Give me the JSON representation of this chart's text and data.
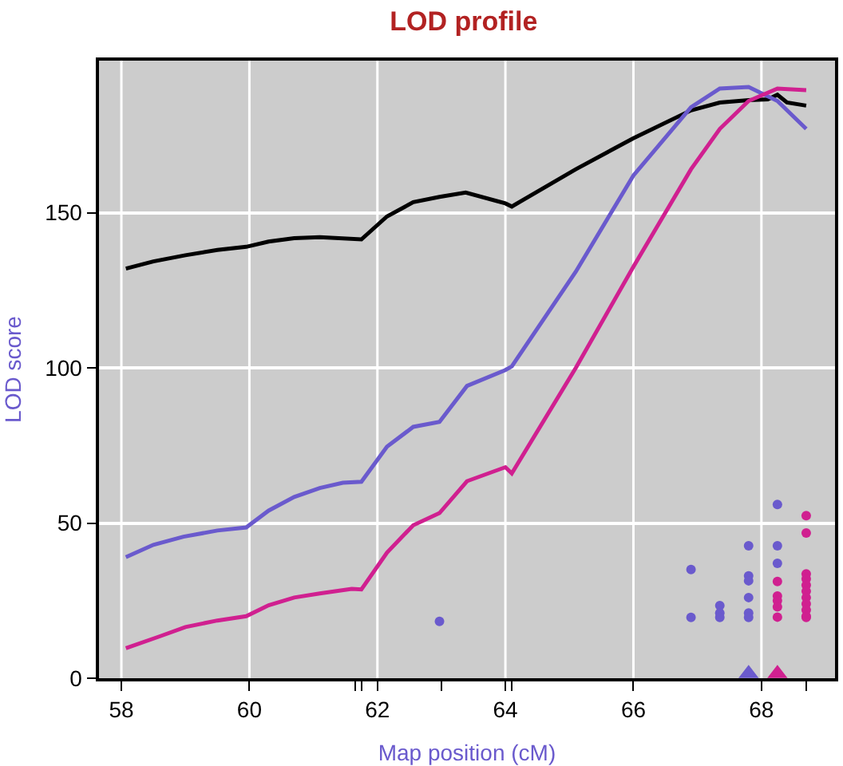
{
  "chart_data": {
    "type": "line",
    "title": "LOD profile",
    "xlabel": "Map position (cM)",
    "ylabel": "LOD score",
    "xlim": [
      57.65,
      69.15
    ],
    "ylim": [
      0,
      199
    ],
    "xticks": [
      58,
      60,
      62,
      64,
      66,
      68,
      {
        "value": 61.65,
        "label": null
      },
      {
        "value": 61.75,
        "label": null
      },
      {
        "value": 63.0,
        "label": null
      },
      {
        "value": 64.1,
        "label": null
      },
      {
        "value": 68.7,
        "label": null
      }
    ],
    "yticks": [
      0,
      50,
      100,
      150
    ],
    "grid": true,
    "line_style": "solid",
    "marker": "none",
    "series": [
      {
        "color": "#000000",
        "x": [
          58.07,
          58.5,
          59.0,
          59.5,
          59.95,
          60.3,
          60.7,
          61.1,
          61.75,
          62.15,
          62.56,
          62.97,
          63.38,
          64.0,
          64.1,
          65.1,
          66.0,
          66.9,
          67.35,
          67.8,
          68.1,
          68.25,
          68.4,
          68.7
        ],
        "values": [
          132,
          134.3,
          136.3,
          138,
          139,
          140.7,
          141.8,
          142.1,
          141.4,
          148.8,
          153.4,
          155.1,
          156.5,
          153,
          152,
          164,
          174,
          183,
          185.5,
          186.3,
          186.5,
          188,
          185.5,
          184.5
        ]
      },
      {
        "color": "#6a5acd",
        "x": [
          58.07,
          58.5,
          58.97,
          59.5,
          59.95,
          60.3,
          60.7,
          61.1,
          61.46,
          61.75,
          62.15,
          62.56,
          62.97,
          63.4,
          64.0,
          64.1,
          65.1,
          66.0,
          66.9,
          67.35,
          67.8,
          68.25,
          68.7
        ],
        "values": [
          39,
          43,
          45.6,
          47.6,
          48.6,
          54,
          58.4,
          61.3,
          63,
          63.3,
          74.6,
          81,
          82.6,
          94.2,
          99.3,
          100.5,
          131,
          162,
          184,
          190,
          190.5,
          186,
          177
        ]
      },
      {
        "color": "#d02090",
        "x": [
          58.07,
          58.6,
          59.0,
          59.5,
          59.95,
          60.3,
          60.7,
          61.1,
          61.6,
          61.75,
          62.15,
          62.56,
          62.97,
          63.4,
          64.0,
          64.1,
          65.1,
          66.0,
          66.9,
          67.35,
          67.8,
          68.25,
          68.7
        ],
        "values": [
          9.7,
          13.5,
          16.5,
          18.6,
          20,
          23.5,
          26,
          27.3,
          28.8,
          28.6,
          40.5,
          49.3,
          53.2,
          63.5,
          68,
          66,
          100,
          132.6,
          164,
          177,
          186,
          190,
          189.5
        ]
      },
      {
        "type": "scatter",
        "marker": "circle",
        "color": "#6a5acd",
        "x": [
          62.97,
          66.9,
          66.9,
          67.35,
          67.35,
          67.35,
          67.8,
          67.8,
          67.8,
          67.8,
          67.8,
          67.8,
          68.25,
          68.25,
          68.25
        ],
        "values": [
          18.3,
          35,
          19.6,
          23.4,
          21,
          19.6,
          42.7,
          33,
          31.4,
          26,
          21,
          19.6,
          56,
          42.7,
          37
        ]
      },
      {
        "type": "scatter",
        "marker": "circle",
        "color": "#d02090",
        "x": [
          68.25,
          68.25,
          68.25,
          68.25,
          68.25,
          68.7,
          68.7,
          68.7,
          68.7,
          68.7,
          68.7,
          68.7,
          68.7,
          68.7,
          68.7,
          68.7
        ],
        "values": [
          31.2,
          26.5,
          25,
          23,
          19.7,
          52.4,
          46.8,
          33.6,
          32,
          30,
          28,
          26,
          24,
          22,
          20,
          19.6
        ]
      },
      {
        "type": "scatter",
        "marker": "triangle",
        "color": "#6a5acd",
        "x": [
          67.8
        ],
        "values": [
          1.5
        ]
      },
      {
        "type": "scatter",
        "marker": "triangle",
        "color": "#d02090",
        "x": [
          68.25
        ],
        "values": [
          1.5
        ]
      }
    ]
  }
}
